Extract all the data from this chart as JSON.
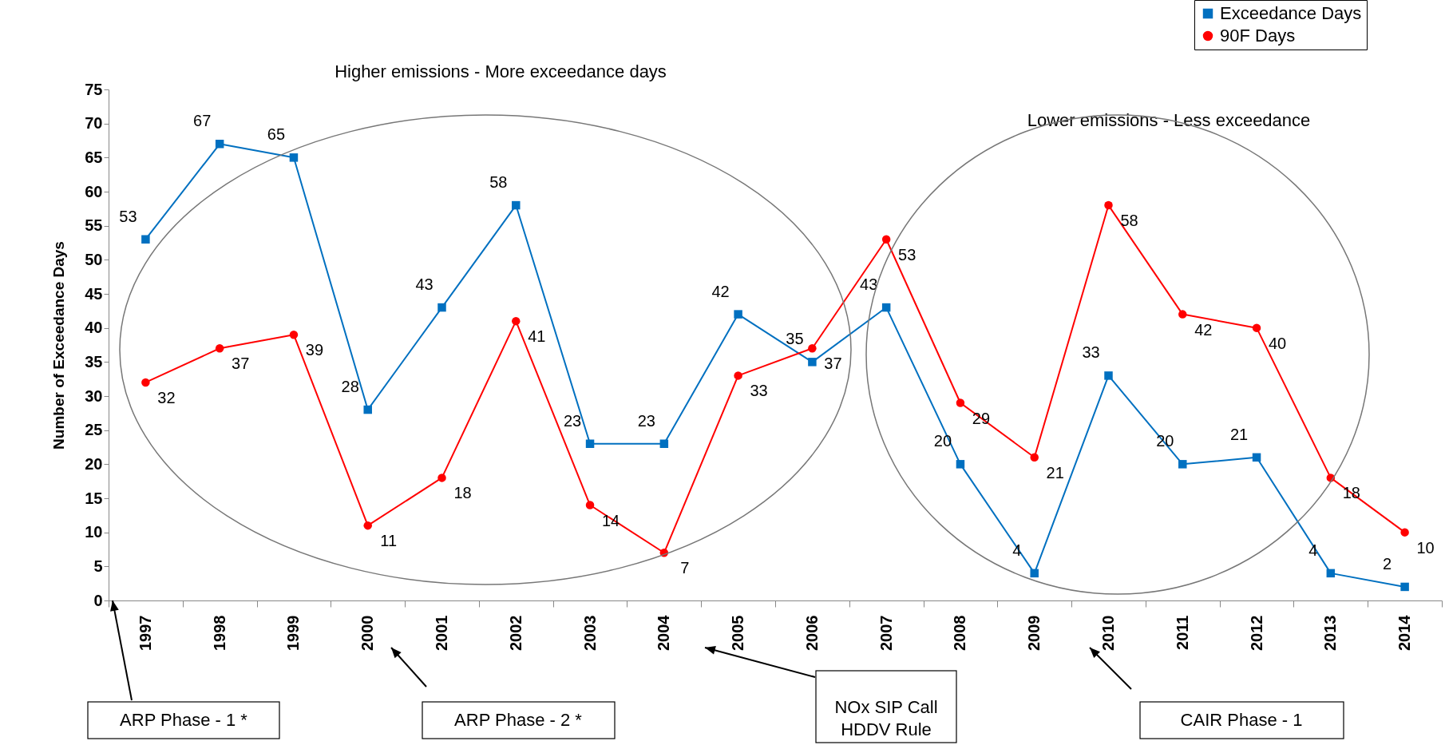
{
  "chart_data": {
    "type": "line",
    "ylabel": "Number of Exceedance Days",
    "categories": [
      "1997",
      "1998",
      "1999",
      "2000",
      "2001",
      "2002",
      "2003",
      "2004",
      "2005",
      "2006",
      "2007",
      "2008",
      "2009",
      "2010",
      "2011",
      "2012",
      "2013",
      "2014"
    ],
    "series": [
      {
        "name": "Exceedance Days",
        "color": "#0070c0",
        "marker": "square",
        "values": [
          53,
          67,
          65,
          28,
          43,
          58,
          23,
          23,
          42,
          35,
          43,
          20,
          4,
          33,
          20,
          21,
          4,
          2
        ]
      },
      {
        "name": "90F Days",
        "color": "#ff0000",
        "marker": "circle",
        "values": [
          32,
          37,
          39,
          11,
          18,
          41,
          14,
          7,
          33,
          37,
          53,
          29,
          21,
          58,
          42,
          40,
          18,
          10
        ]
      }
    ],
    "ylim": [
      0,
      75
    ],
    "yticks": [
      0,
      5,
      10,
      15,
      20,
      25,
      30,
      35,
      40,
      45,
      50,
      55,
      60,
      65,
      70,
      75
    ],
    "grid": false,
    "legend": "top right",
    "data_labels": true,
    "line_style": "solid",
    "annotations": [
      "Higher emissions - More exceedance days",
      "Lower emissions - Less exceedance",
      "ARP Phase - 1 *",
      "ARP Phase - 2 *",
      "NOx SIP Call\nHDDV Rule",
      "CAIR Phase - 1"
    ]
  }
}
